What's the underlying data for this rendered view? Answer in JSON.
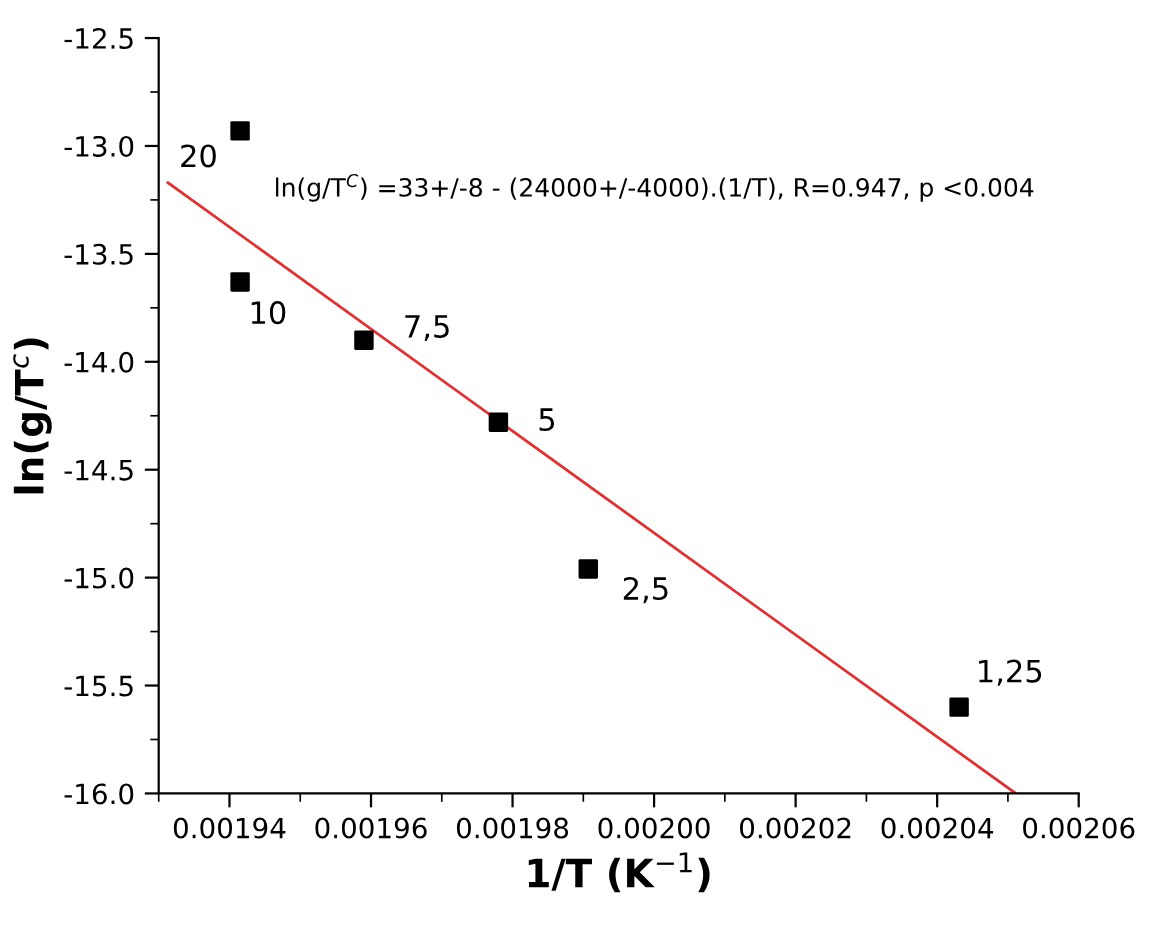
{
  "chart_data": {
    "type": "scatter",
    "xlabel": "1/T (K$^{−1}$)",
    "ylabel": "ln(g/T$^{c}$)",
    "xlim": [
      0.00193,
      0.00206
    ],
    "xticks": [
      {
        "value": 0.00194,
        "label": "0.00194"
      },
      {
        "value": 0.00196,
        "label": "0.00196"
      },
      {
        "value": 0.00198,
        "label": "0.00198"
      },
      {
        "value": 0.002,
        "label": "0.00200"
      },
      {
        "value": 0.00202,
        "label": "0.00202"
      },
      {
        "value": 0.00204,
        "label": "0.00204"
      },
      {
        "value": 0.00206,
        "label": "0.00206"
      }
    ],
    "ylim": [
      -16.0,
      -12.5
    ],
    "yticks": [
      {
        "value": -16.0,
        "label": "-16.0"
      },
      {
        "value": -15.5,
        "label": "-15.5"
      },
      {
        "value": -15.0,
        "label": "-15.0"
      },
      {
        "value": -14.5,
        "label": "-14.5"
      },
      {
        "value": -14.0,
        "label": "-14.0"
      },
      {
        "value": -13.5,
        "label": "-13.5"
      },
      {
        "value": -13.0,
        "label": "-13.0"
      },
      {
        "value": -12.5,
        "label": "-12.5"
      }
    ],
    "grid": false,
    "legend": false,
    "series": [
      {
        "color": "#000000",
        "marker": "square",
        "x": [
          0.0019415,
          0.0019415,
          0.001959,
          0.001978,
          0.0019907,
          0.0020431
        ],
        "values": [
          -12.93,
          -13.63,
          -13.9,
          -14.28,
          -14.96,
          -15.6
        ]
      },
      {
        "type": "line",
        "color": "#e03030",
        "line_style": "solid",
        "marker": "none",
        "x": [
          0.0019313,
          0.0020511
        ],
        "values": [
          -13.17,
          -16.0
        ]
      }
    ],
    "annotations": [
      {
        "text": "20",
        "x": 0.0019415,
        "y": -12.93
      },
      {
        "text": "10",
        "x": 0.0019415,
        "y": -13.63
      },
      {
        "text": "7,5",
        "x": 0.001959,
        "y": -13.9
      },
      {
        "text": "5",
        "x": 0.001978,
        "y": -14.28
      },
      {
        "text": "2,5",
        "x": 0.0019907,
        "y": -14.96
      },
      {
        "text": "1,25",
        "x": 0.0020431,
        "y": -15.6
      },
      "ln(g/T$^{C}$) =33+/-8 - (24000+/-4000).(1/T), R=0.947, p <0.004"
    ]
  }
}
